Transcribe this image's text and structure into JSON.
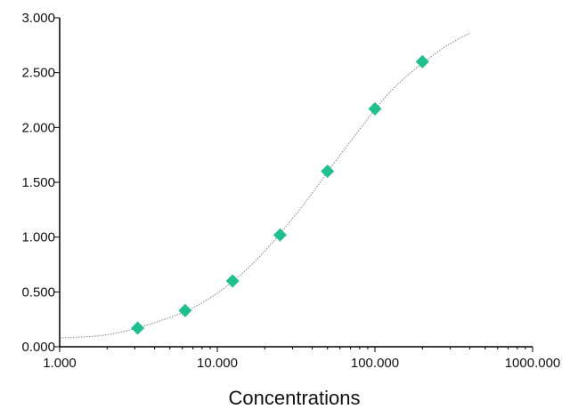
{
  "chart_data": {
    "type": "scatter",
    "xlabel": "Concentrations",
    "ylabel": "",
    "x_scale": "log",
    "xlim": [
      1,
      1000
    ],
    "ylim": [
      0,
      3
    ],
    "x_ticks": [
      {
        "value": 1,
        "label": "1.000"
      },
      {
        "value": 10,
        "label": "10.000"
      },
      {
        "value": 100,
        "label": "100.000"
      },
      {
        "value": 1000,
        "label": "1000.000"
      }
    ],
    "y_ticks": [
      {
        "value": 0,
        "label": "0.000"
      },
      {
        "value": 0.5,
        "label": "0.500"
      },
      {
        "value": 1,
        "label": "1.000"
      },
      {
        "value": 1.5,
        "label": "1.500"
      },
      {
        "value": 2,
        "label": "2.000"
      },
      {
        "value": 2.5,
        "label": "2.500"
      },
      {
        "value": 3,
        "label": "3.000"
      }
    ],
    "grid": false,
    "legend": "none",
    "series": [
      {
        "x": [
          3.125,
          6.25,
          12.5,
          25,
          50,
          100,
          200
        ],
        "y": [
          0.17,
          0.33,
          0.6,
          1.02,
          1.6,
          2.17,
          2.6
        ],
        "marker": "diamond",
        "color": "#1fbf8f"
      }
    ],
    "fit_curve": {
      "style": "dotted",
      "color": "#8c8c8c",
      "x": [
        1.0,
        2.0,
        4.0,
        8.0,
        16.0,
        32.0,
        64.0,
        128.0,
        256.0,
        400.0
      ],
      "y": [
        0.08,
        0.11,
        0.22,
        0.4,
        0.73,
        1.22,
        1.8,
        2.34,
        2.7,
        2.86
      ]
    }
  }
}
